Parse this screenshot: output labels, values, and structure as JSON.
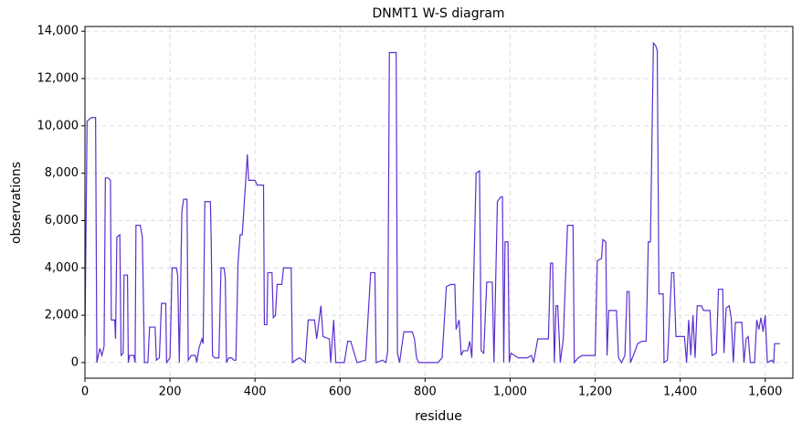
{
  "chart_data": {
    "type": "line",
    "title": "DNMT1 W-S diagram",
    "x_label": "residue",
    "y_label": "observations",
    "x": [
      0,
      5,
      15,
      25,
      28,
      35,
      40,
      45,
      48,
      55,
      60,
      62,
      70,
      72,
      75,
      82,
      85,
      90,
      92,
      100,
      102,
      105,
      115,
      118,
      120,
      130,
      135,
      140,
      148,
      152,
      165,
      168,
      175,
      180,
      190,
      192,
      200,
      205,
      215,
      218,
      222,
      228,
      232,
      240,
      243,
      250,
      260,
      263,
      268,
      275,
      278,
      282,
      295,
      297,
      300,
      305,
      315,
      320,
      327,
      330,
      333,
      338,
      345,
      350,
      355,
      360,
      365,
      370,
      382,
      385,
      400,
      405,
      420,
      422,
      428,
      430,
      440,
      443,
      448,
      452,
      463,
      467,
      485,
      488,
      495,
      505,
      518,
      525,
      540,
      545,
      555,
      560,
      575,
      578,
      585,
      590,
      610,
      618,
      625,
      630,
      640,
      660,
      672,
      682,
      685,
      700,
      708,
      712,
      716,
      732,
      735,
      740,
      750,
      770,
      775,
      780,
      785,
      830,
      840,
      850,
      860,
      870,
      873,
      880,
      885,
      890,
      900,
      905,
      910,
      920,
      928,
      932,
      938,
      945,
      958,
      962,
      970,
      978,
      982,
      985,
      988,
      995,
      998,
      1002,
      1010,
      1020,
      1040,
      1050,
      1055,
      1065,
      1090,
      1095,
      1100,
      1104,
      1108,
      1112,
      1118,
      1125,
      1135,
      1148,
      1151,
      1160,
      1170,
      1200,
      1205,
      1215,
      1218,
      1225,
      1228,
      1232,
      1250,
      1255,
      1262,
      1270,
      1275,
      1280,
      1283,
      1290,
      1300,
      1310,
      1320,
      1325,
      1330,
      1337,
      1342,
      1346,
      1350,
      1360,
      1362,
      1370,
      1380,
      1385,
      1390,
      1410,
      1415,
      1420,
      1425,
      1430,
      1435,
      1440,
      1450,
      1455,
      1470,
      1475,
      1485,
      1490,
      1500,
      1503,
      1508,
      1515,
      1520,
      1525,
      1530,
      1545,
      1550,
      1555,
      1560,
      1565,
      1575,
      1580,
      1585,
      1590,
      1595,
      1600,
      1605,
      1615,
      1620,
      1622,
      1635
    ],
    "values": [
      1100,
      10200,
      10350,
      10350,
      0,
      600,
      300,
      700,
      7800,
      7800,
      7700,
      1800,
      1800,
      1000,
      5300,
      5400,
      300,
      400,
      3700,
      3700,
      0,
      300,
      300,
      0,
      5800,
      5800,
      5300,
      0,
      0,
      1500,
      1500,
      100,
      200,
      2500,
      2500,
      0,
      200,
      4000,
      4000,
      3700,
      0,
      6400,
      6900,
      6900,
      100,
      300,
      300,
      0,
      600,
      1000,
      800,
      6800,
      6800,
      5200,
      300,
      200,
      200,
      4000,
      4000,
      3600,
      0,
      200,
      200,
      100,
      100,
      4200,
      5400,
      5400,
      8800,
      7700,
      7700,
      7500,
      7500,
      1600,
      1600,
      3800,
      3800,
      1900,
      2000,
      3300,
      3300,
      4000,
      4000,
      0,
      100,
      200,
      0,
      1800,
      1800,
      1000,
      2400,
      1100,
      1000,
      0,
      1800,
      0,
      0,
      900,
      900,
      600,
      0,
      100,
      3800,
      3800,
      0,
      100,
      0,
      500,
      13100,
      13100,
      400,
      0,
      1300,
      1300,
      1000,
      200,
      0,
      0,
      200,
      3200,
      3300,
      3300,
      1400,
      1800,
      300,
      500,
      500,
      900,
      200,
      8000,
      8100,
      500,
      400,
      3400,
      3400,
      0,
      6800,
      7000,
      7000,
      0,
      5100,
      5100,
      0,
      400,
      300,
      200,
      200,
      300,
      0,
      1000,
      1000,
      4200,
      4200,
      0,
      2400,
      2400,
      0,
      1000,
      5800,
      5800,
      0,
      200,
      300,
      300,
      4300,
      4400,
      5200,
      5100,
      300,
      2200,
      2200,
      200,
      0,
      300,
      3000,
      3000,
      0,
      300,
      800,
      900,
      900,
      5100,
      5100,
      13500,
      13400,
      13200,
      2900,
      2900,
      0,
      100,
      3800,
      3800,
      1100,
      1100,
      0,
      1800,
      300,
      2000,
      200,
      2400,
      2400,
      2200,
      2200,
      300,
      400,
      3100,
      3100,
      400,
      2300,
      2400,
      1900,
      0,
      1700,
      1700,
      0,
      1000,
      1100,
      0,
      0,
      1800,
      1400,
      1900,
      1300,
      2000,
      0,
      100,
      0,
      800,
      800
    ],
    "color": "#5b2fd0",
    "xlim": [
      0,
      1665
    ],
    "ylim": [
      -660,
      14200
    ],
    "xticks": [
      0,
      200,
      400,
      600,
      800,
      {
        "value": 1000,
        "label": "1,000"
      },
      {
        "value": 1200,
        "label": "1,200"
      },
      {
        "value": 1400,
        "label": "1,400"
      },
      {
        "value": 1600,
        "label": "1,600"
      }
    ],
    "yticks": [
      0,
      {
        "value": 2000,
        "label": "2,000"
      },
      {
        "value": 4000,
        "label": "4,000"
      },
      {
        "value": 6000,
        "label": "6,000"
      },
      {
        "value": 8000,
        "label": "8,000"
      },
      {
        "value": 10000,
        "label": "10,000"
      },
      {
        "value": 12000,
        "label": "12,000"
      },
      {
        "value": 14000,
        "label": "14,000"
      }
    ],
    "grid": true
  }
}
